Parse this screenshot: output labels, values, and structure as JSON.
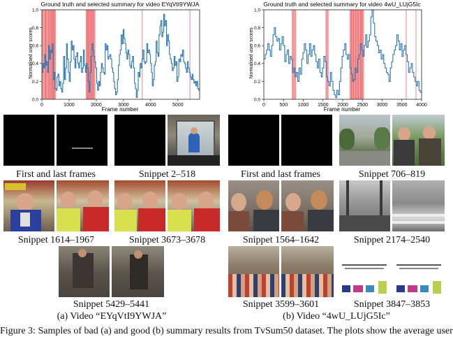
{
  "plots": [
    {
      "title": "Ground truth and selected summary for video EYqVtI9YWJA",
      "ylabel": "Normalised user scores",
      "xlabel": "Frame number",
      "x_ticks": [
        "0",
        "1000",
        "2000",
        "3000",
        "4000",
        "5000"
      ],
      "y_ticks": [
        "0.0",
        "0.2",
        "0.4",
        "0.6",
        "0.8",
        "1.0"
      ],
      "x_max": 5800,
      "selected_ranges": [
        [
          2,
          518
        ],
        [
          1614,
          1967
        ],
        [
          3673,
          3678
        ],
        [
          5429,
          5441
        ]
      ],
      "extra_bands": [
        [
          120,
          160
        ],
        [
          240,
          270
        ],
        [
          320,
          350
        ],
        [
          380,
          420
        ],
        [
          440,
          470
        ],
        [
          1650,
          1680
        ],
        [
          1700,
          1720
        ],
        [
          1760,
          1790
        ],
        [
          1820,
          1850
        ],
        [
          1880,
          1910
        ]
      ],
      "scores": [
        0.3,
        0.4,
        0.35,
        0.5,
        0.38,
        0.42,
        0.3,
        0.6,
        0.45,
        0.55,
        0.52,
        0.62,
        0.22,
        0.3,
        0.12,
        0.1,
        0.25,
        0.28,
        0.15,
        0.2,
        0.12,
        0.08,
        0.18,
        0.48,
        0.22,
        0.35,
        0.62,
        0.45,
        0.3,
        0.2,
        0.42,
        0.65,
        0.55,
        0.6,
        0.45,
        0.35,
        0.48,
        0.52,
        0.4,
        0.35,
        0.42,
        0.48,
        0.3,
        0.35,
        0.55,
        0.38,
        0.3,
        0.4,
        0.35,
        0.2,
        0.08,
        0.3,
        0.48,
        0.62,
        0.55,
        0.48,
        0.42,
        0.35,
        0.18,
        0.1,
        0.2,
        0.15,
        0.3,
        0.4,
        0.35,
        0.3,
        0.28,
        0.62,
        0.55,
        0.6,
        0.45,
        0.48,
        0.5,
        0.45,
        0.35,
        0.3,
        0.2,
        0.12,
        0.05,
        0.08,
        0.22,
        0.38,
        0.5,
        0.55,
        0.72,
        0.62,
        0.78,
        0.68,
        0.62,
        0.52,
        0.45,
        0.55,
        0.5,
        0.38,
        0.35,
        0.42,
        0.48,
        0.35,
        0.18,
        0.12,
        0.02,
        0.1,
        0.3,
        0.25,
        0.4,
        0.35,
        0.45,
        0.55,
        0.42,
        0.4,
        0.42,
        0.62,
        0.52,
        0.55,
        0.5,
        0.4,
        0.3,
        0.15,
        0.22,
        0.38,
        0.42,
        0.65,
        0.52,
        0.48,
        0.72,
        0.82,
        0.88,
        0.7,
        0.75,
        0.95,
        0.82,
        0.88,
        0.6,
        0.72,
        0.65,
        0.5,
        0.45,
        0.4,
        0.32,
        0.35,
        0.48,
        0.38,
        0.42,
        0.2,
        0.25,
        0.45,
        0.42,
        0.5,
        0.48,
        0.55,
        0.42,
        0.4,
        0.35,
        0.3,
        0.42,
        0.35,
        0.3,
        0.25,
        0.22,
        0.28,
        0.22,
        0.18,
        0.2,
        0.15,
        0.2,
        0.12,
        0.1
      ]
    },
    {
      "title": "Ground truth and selected summary for video 4wU_LUjG5Ic",
      "ylabel": "Normalised user scores",
      "xlabel": "Frame number",
      "x_ticks": [
        "0",
        "500",
        "1000",
        "1500",
        "2000",
        "2500",
        "3000",
        "3500",
        "4000"
      ],
      "y_ticks": [
        "0.0",
        "0.2",
        "0.4",
        "0.6",
        "0.8",
        "1.0"
      ],
      "x_max": 4000,
      "selected_ranges": [
        [
          706,
          819
        ],
        [
          1564,
          1642
        ],
        [
          2174,
          2540
        ],
        [
          3599,
          3601
        ],
        [
          3847,
          3853
        ]
      ],
      "extra_bands": [
        [
          2210,
          2225
        ],
        [
          2260,
          2280
        ],
        [
          2320,
          2340
        ],
        [
          2380,
          2400
        ],
        [
          2440,
          2460
        ],
        [
          2480,
          2500
        ]
      ],
      "scores": [
        0.45,
        0.5,
        0.55,
        0.62,
        0.55,
        0.48,
        0.6,
        0.72,
        0.8,
        0.7,
        0.65,
        0.68,
        0.55,
        0.62,
        0.7,
        0.6,
        0.42,
        0.5,
        0.55,
        0.4,
        0.48,
        0.45,
        0.3,
        0.35,
        0.25,
        0.3,
        0.2,
        0.35,
        0.28,
        0.45,
        0.52,
        0.62,
        0.55,
        0.4,
        0.5,
        0.62,
        0.48,
        0.55,
        0.6,
        0.5,
        0.42,
        0.35,
        0.45,
        0.3,
        0.25,
        0.35,
        0.48,
        0.42,
        0.25,
        0.2,
        0.15,
        0.3,
        0.2,
        0.1,
        0.05,
        0.02,
        0.1,
        0.05,
        0.2,
        0.35,
        0.48,
        0.55,
        0.62,
        0.5,
        0.45,
        0.5,
        0.35,
        0.28,
        0.2,
        0.22,
        0.35,
        0.3,
        0.45,
        0.5,
        0.62,
        0.55,
        0.48,
        0.6,
        0.72,
        0.58,
        0.65,
        0.72,
        0.92,
        1.0,
        0.85,
        0.7,
        0.65,
        0.6,
        0.52,
        0.55,
        0.45,
        0.5,
        0.4,
        0.35,
        0.3,
        0.28,
        0.2,
        0.35,
        0.42,
        0.5,
        0.55,
        0.6,
        0.72,
        0.65,
        0.55,
        0.62,
        0.48,
        0.55,
        0.6,
        0.5,
        0.42,
        0.3,
        0.35,
        0.4,
        0.3,
        0.25,
        0.2,
        0.15,
        0.2,
        0.1,
        0.08
      ]
    }
  ],
  "panels": [
    {
      "caption": "(a) Video “EYqVtI9YWJA”",
      "snippets": [
        {
          "label": "First and last frames"
        },
        {
          "label": "Snippet 2–518"
        },
        {
          "label": "Snippet 1614–1967"
        },
        {
          "label": "Snippet 3673–3678"
        },
        {
          "label": "Snippet 5429–5441"
        }
      ]
    },
    {
      "caption": "(b) Video “4wU_LUjG5Ic”",
      "snippets": [
        {
          "label": "First and last frames"
        },
        {
          "label": "Snippet 706–819"
        },
        {
          "label": "Snippet 1564–1642"
        },
        {
          "label": "Snippet 2174–2540"
        },
        {
          "label": "Snippet 3599–3601"
        },
        {
          "label": "Snippet 3847–3853"
        }
      ]
    }
  ],
  "bottom_text": "Figure 3: Samples of bad (a) and good (b) summary results from TvSum50 dataset. The plots show the average user",
  "colors": {
    "line": "#2a77b4",
    "band": "#e8474c"
  }
}
